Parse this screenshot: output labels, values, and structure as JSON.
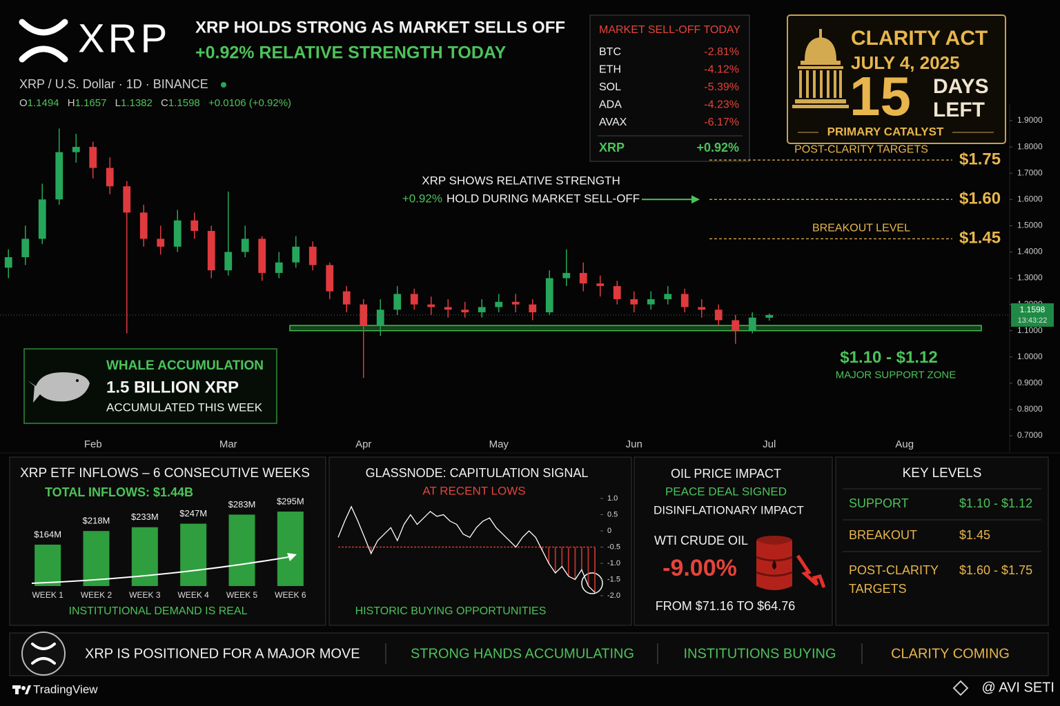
{
  "header": {
    "logo_text": "XRP",
    "headline": "XRP HOLDS STRONG AS MARKET SELLS OFF",
    "subheadline": "+0.92% RELATIVE STRENGTH TODAY",
    "symbol": "XRP / U.S. Dollar · 1D · BINANCE",
    "ohlc": [
      {
        "label": "O",
        "value": "1.1494"
      },
      {
        "label": "H",
        "value": "1.1657"
      },
      {
        "label": "L",
        "value": "1.1382"
      },
      {
        "label": "C",
        "value": "1.1598"
      }
    ],
    "change": "+0.0106 (+0.92%)"
  },
  "market_table": {
    "title": "MARKET SELL-OFF TODAY",
    "rows": [
      [
        "BTC",
        "-2.81%"
      ],
      [
        "ETH",
        "-4.12%"
      ],
      [
        "SOL",
        "-5.39%"
      ],
      [
        "ADA",
        "-4.23%"
      ],
      [
        "AVAX",
        "-6.17%"
      ]
    ],
    "highlight": [
      "XRP",
      "+0.92%"
    ]
  },
  "clarity": {
    "title": "CLARITY ACT",
    "date": "JULY 4, 2025",
    "count": "15",
    "unit_1": "DAYS",
    "unit_2": "LEFT",
    "caption": "PRIMARY CATALYST"
  },
  "whale": {
    "title": "WHALE ACCUMULATION",
    "amount": "1.5 BILLION XRP",
    "caption": "ACCUMULATED THIS WEEK"
  },
  "chart_data": [
    {
      "type": "candlestick",
      "categories": [
        null,
        null,
        null,
        null,
        null,
        "Feb",
        null,
        null,
        null,
        null,
        null,
        null,
        null,
        "Mar",
        null,
        null,
        null,
        null,
        null,
        null,
        null,
        "Apr",
        null,
        null,
        null,
        null,
        null,
        null,
        null,
        "May",
        null,
        null,
        null,
        null,
        null,
        null,
        null,
        "Jun",
        null,
        null,
        null,
        null,
        null,
        null,
        null,
        "Jul",
        null,
        null,
        null,
        null,
        null,
        null,
        null,
        "Aug",
        null,
        null,
        null,
        null,
        null
      ],
      "open": [
        1.34,
        1.38,
        1.45,
        1.6,
        1.78,
        1.8,
        1.72,
        1.65,
        1.55,
        1.45,
        1.42,
        1.52,
        1.48,
        1.33,
        1.4,
        1.45,
        1.32,
        1.36,
        1.42,
        1.35,
        1.25,
        1.2,
        1.12,
        1.18,
        1.24,
        1.2,
        1.19,
        1.18,
        1.17,
        1.19,
        1.21,
        1.2,
        1.17,
        1.3,
        1.32,
        1.28,
        1.27,
        1.22,
        1.2,
        1.22,
        1.24,
        1.19,
        1.18,
        1.14,
        1.1,
        1.1494,
        null,
        null,
        null,
        null,
        null,
        null,
        null,
        null,
        null,
        null,
        null,
        null,
        null
      ],
      "high": [
        1.41,
        1.5,
        1.66,
        1.87,
        1.85,
        1.82,
        1.76,
        1.67,
        1.58,
        1.5,
        1.56,
        1.55,
        1.5,
        1.63,
        1.5,
        1.46,
        1.4,
        1.46,
        1.44,
        1.36,
        1.27,
        1.22,
        1.22,
        1.27,
        1.26,
        1.23,
        1.22,
        1.21,
        1.22,
        1.24,
        1.24,
        1.22,
        1.33,
        1.41,
        1.36,
        1.31,
        1.29,
        1.25,
        1.25,
        1.27,
        1.26,
        1.22,
        1.2,
        1.16,
        1.17,
        1.1657,
        null,
        null,
        null,
        null,
        null,
        null,
        null,
        null,
        null,
        null,
        null,
        null,
        null
      ],
      "low": [
        1.3,
        1.35,
        1.43,
        1.58,
        1.74,
        1.68,
        1.62,
        1.09,
        1.42,
        1.39,
        1.4,
        1.45,
        1.3,
        1.31,
        1.38,
        1.29,
        1.3,
        1.34,
        1.33,
        1.22,
        1.17,
        0.92,
        1.08,
        1.16,
        1.18,
        1.16,
        1.15,
        1.15,
        1.15,
        1.17,
        1.17,
        1.14,
        1.16,
        1.27,
        1.25,
        1.23,
        1.2,
        1.17,
        1.18,
        1.2,
        1.17,
        1.15,
        1.12,
        1.05,
        1.09,
        1.1382,
        null,
        null,
        null,
        null,
        null,
        null,
        null,
        null,
        null,
        null,
        null,
        null,
        null
      ],
      "close": [
        1.38,
        1.45,
        1.6,
        1.78,
        1.8,
        1.72,
        1.65,
        1.55,
        1.45,
        1.42,
        1.52,
        1.48,
        1.33,
        1.4,
        1.45,
        1.32,
        1.36,
        1.42,
        1.35,
        1.25,
        1.2,
        1.12,
        1.18,
        1.24,
        1.2,
        1.19,
        1.18,
        1.17,
        1.19,
        1.21,
        1.2,
        1.17,
        1.3,
        1.32,
        1.28,
        1.27,
        1.22,
        1.2,
        1.22,
        1.24,
        1.19,
        1.18,
        1.14,
        1.1,
        1.15,
        1.1598,
        null,
        null,
        null,
        null,
        null,
        null,
        null,
        null,
        null,
        null,
        null,
        null,
        null
      ],
      "up_color": "#26a65b",
      "down_color": "#e03a3e",
      "ylim": [
        0.7,
        1.9
      ],
      "yticks": [
        {
          "value": 0.7,
          "label": "0.7000"
        },
        {
          "value": 0.8,
          "label": "0.8000"
        },
        {
          "value": 0.9,
          "label": "0.9000"
        },
        {
          "value": 1.0,
          "label": "1.0000"
        },
        {
          "value": 1.1,
          "label": "1.1000"
        },
        {
          "value": 1.2,
          "label": "1.2000"
        },
        {
          "value": 1.3,
          "label": "1.3000"
        },
        {
          "value": 1.4,
          "label": "1.4000"
        },
        {
          "value": 1.5,
          "label": "1.5000"
        },
        {
          "value": 1.6,
          "label": "1.6000"
        },
        {
          "value": 1.7,
          "label": "1.7000"
        },
        {
          "value": 1.8,
          "label": "1.8000"
        },
        {
          "value": 1.9,
          "label": "1.9000"
        }
      ],
      "last_price": 1.1598,
      "last_time": "13:43:22",
      "levels": [
        {
          "caption": "POST-CLARITY TARGETS",
          "value": 1.75,
          "label": "$1.75"
        },
        {
          "value": 1.6,
          "label": "$1.60"
        },
        {
          "caption": "BREAKOUT LEVEL",
          "value": 1.45,
          "label": "$1.45"
        }
      ],
      "level_color": "#e8b64c",
      "support_zone": {
        "range": [
          1.1,
          1.12
        ],
        "label": "$1.10 - $1.12",
        "caption": "MAJOR SUPPORT ZONE",
        "color": "#2f8f3a"
      },
      "annotation": {
        "line_1": "XRP SHOWS RELATIVE STRENGTH",
        "highlight": "+0.92%",
        "line_2": "HOLD DURING MARKET SELL-OFF"
      }
    },
    {
      "type": "bar",
      "title": "XRP ETF INFLOWS – 6 CONSECUTIVE WEEKS",
      "subtitle": "TOTAL INFLOWS: $1.44B",
      "footer": "INSTITUTIONAL DEMAND IS REAL",
      "categories": [
        "WEEK 1",
        "WEEK 2",
        "WEEK 3",
        "WEEK 4",
        "WEEK 5",
        "WEEK 6"
      ],
      "values": [
        164,
        218,
        233,
        247,
        283,
        295
      ],
      "value_labels": [
        "$164M",
        "$218M",
        "$233M",
        "$247M",
        "$283M",
        "$295M"
      ],
      "color": "#2e9e3e"
    },
    {
      "type": "line",
      "title": "GLASSNODE: CAPITULATION SIGNAL",
      "subtitle": "AT RECENT LOWS",
      "footer": "HISTORIC BUYING OPPORTUNITIES",
      "values": [
        -0.2,
        0.3,
        0.75,
        0.3,
        -0.2,
        -0.7,
        -0.3,
        -0.1,
        0.1,
        -0.3,
        0.2,
        0.5,
        0.2,
        0.4,
        0.6,
        0.45,
        0.5,
        0.3,
        0.2,
        -0.1,
        -0.2,
        0.1,
        0.3,
        0.4,
        0.1,
        -0.1,
        -0.3,
        -0.5,
        -0.2,
        0.0,
        -0.2,
        -0.6,
        -1.0,
        -1.3,
        -1.1,
        -1.4,
        -1.5,
        -1.2,
        -1.7,
        -1.9
      ],
      "color": "#ffffff",
      "threshold": -0.5,
      "threshold_color": "#d63a30",
      "ylim": [
        -2.0,
        1.0
      ],
      "yticks": [
        {
          "value": 1.0,
          "label": "1.0"
        },
        0.5,
        0,
        -0.5,
        {
          "value": -1.0,
          "label": "-1.0"
        },
        -1.5,
        {
          "value": -2.0,
          "label": "-2.0"
        }
      ]
    }
  ],
  "oil": {
    "title": "OIL PRICE IMPACT",
    "line_1": "PEACE DEAL SIGNED",
    "line_2": "DISINFLATIONARY IMPACT",
    "label": "WTI CRUDE OIL",
    "change": "-9.00%",
    "detail": "FROM $71.16 TO $64.76"
  },
  "key_levels": {
    "title": "KEY LEVELS",
    "rows": [
      [
        "SUPPORT",
        "$1.10 - $1.12"
      ],
      [
        "BREAKOUT",
        "$1.45"
      ],
      [
        "POST-CLARITY TARGETS",
        "$1.60 - $1.75"
      ]
    ]
  },
  "footer": {
    "items": [
      "XRP IS POSITIONED FOR A MAJOR MOVE",
      "STRONG HANDS ACCUMULATING",
      "INSTITUTIONS BUYING",
      "CLARITY COMING"
    ],
    "brand": "TradingView",
    "credit": "@ AVI SETI"
  }
}
